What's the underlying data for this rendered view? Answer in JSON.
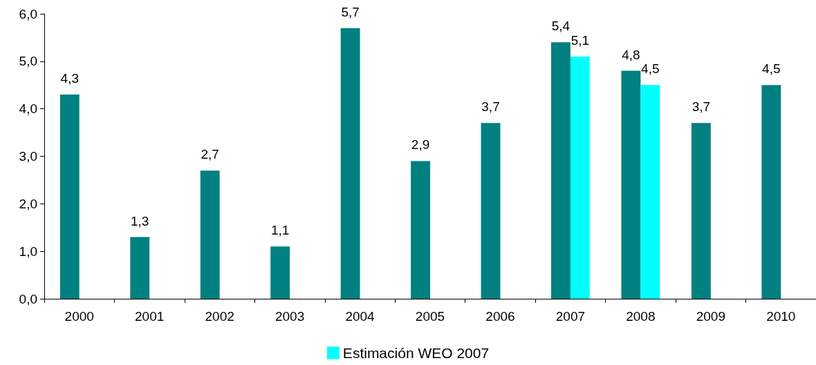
{
  "chart_data": {
    "type": "bar",
    "categories": [
      "2000",
      "2001",
      "2002",
      "2003",
      "2004",
      "2005",
      "2006",
      "2007",
      "2008",
      "2009",
      "2010"
    ],
    "series": [
      {
        "color": "#008080",
        "values": [
          4.3,
          1.3,
          2.7,
          1.1,
          5.7,
          2.9,
          3.7,
          5.4,
          4.8,
          3.7,
          4.5
        ],
        "value_labels": [
          "4,3",
          "1,3",
          "2,7",
          "1,1",
          "5,7",
          "2,9",
          "3,7",
          "5,4",
          "4,8",
          "3,7",
          "4,5"
        ]
      },
      {
        "name": "Estimación WEO 2007",
        "color": "#00ffff",
        "values": [
          null,
          null,
          null,
          null,
          null,
          null,
          null,
          5.1,
          4.5,
          null,
          null
        ],
        "value_labels": [
          null,
          null,
          null,
          null,
          null,
          null,
          null,
          "5,1",
          "4,5",
          null,
          null
        ]
      }
    ],
    "ylim": [
      0,
      6
    ],
    "yticks": [
      {
        "value": 0,
        "label": "0,0"
      },
      {
        "value": 1,
        "label": "1,0"
      },
      {
        "value": 2,
        "label": "2,0"
      },
      {
        "value": 3,
        "label": "3,0"
      },
      {
        "value": 4,
        "label": "4,0"
      },
      {
        "value": 5,
        "label": "5,0"
      },
      {
        "value": 6,
        "label": "6,0"
      }
    ],
    "grid": false,
    "legend": "bottom"
  }
}
